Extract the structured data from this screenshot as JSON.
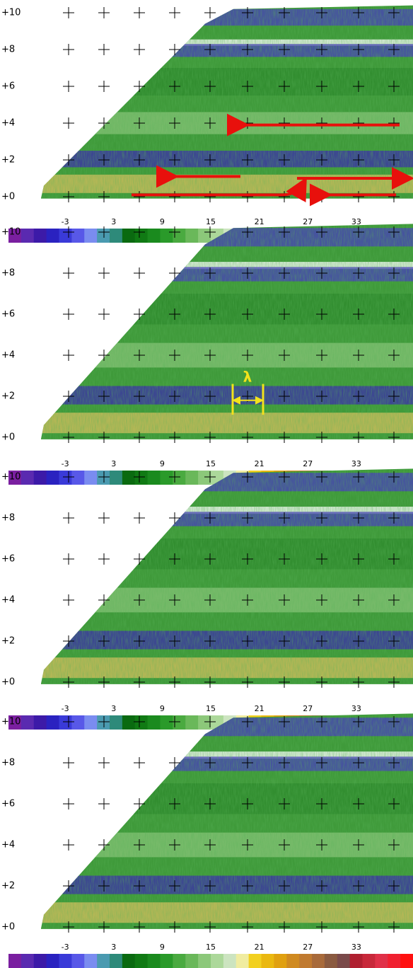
{
  "panels": [
    {
      "y_ticks": [
        {
          "value": 10,
          "label": "+10"
        },
        {
          "value": 8,
          "label": "+8"
        },
        {
          "value": 6,
          "label": "+6"
        },
        {
          "value": 4,
          "label": "+4"
        },
        {
          "value": 2,
          "label": "+2"
        },
        {
          "value": 0,
          "label": "+0"
        }
      ],
      "colorbar": {
        "clim": [
          -10,
          40
        ],
        "ticks": [
          -3,
          3,
          9,
          15,
          21,
          27,
          33
        ]
      }
    },
    {
      "y_ticks": [
        {
          "value": 10,
          "label": "+10"
        },
        {
          "value": 8,
          "label": "+8"
        },
        {
          "value": 6,
          "label": "+6"
        },
        {
          "value": 4,
          "label": "+4"
        },
        {
          "value": 2,
          "label": "+2"
        },
        {
          "value": 0,
          "label": "+0"
        }
      ],
      "colorbar": {
        "clim": [
          -10,
          40
        ],
        "ticks": [
          -3,
          3,
          9,
          15,
          21,
          27,
          33
        ]
      },
      "annotation": "λ"
    },
    {
      "y_ticks": [
        {
          "value": 10,
          "label": "+10"
        },
        {
          "value": 8,
          "label": "+8"
        },
        {
          "value": 6,
          "label": "+6"
        },
        {
          "value": 4,
          "label": "+4"
        },
        {
          "value": 2,
          "label": "+2"
        },
        {
          "value": 0,
          "label": "+0"
        }
      ],
      "colorbar": {
        "clim": [
          -10,
          40
        ],
        "ticks": [
          -3,
          3,
          9,
          15,
          21,
          27,
          33
        ]
      }
    },
    {
      "y_ticks": [
        {
          "value": 10,
          "label": "+10"
        },
        {
          "value": 8,
          "label": "+8"
        },
        {
          "value": 6,
          "label": "+6"
        },
        {
          "value": 4,
          "label": "+4"
        },
        {
          "value": 2,
          "label": "+2"
        },
        {
          "value": 0,
          "label": "+0"
        }
      ],
      "colorbar": {
        "clim": [
          -10,
          40
        ],
        "ticks": [
          -3,
          3,
          9,
          15,
          21,
          27,
          33
        ]
      }
    }
  ]
}
